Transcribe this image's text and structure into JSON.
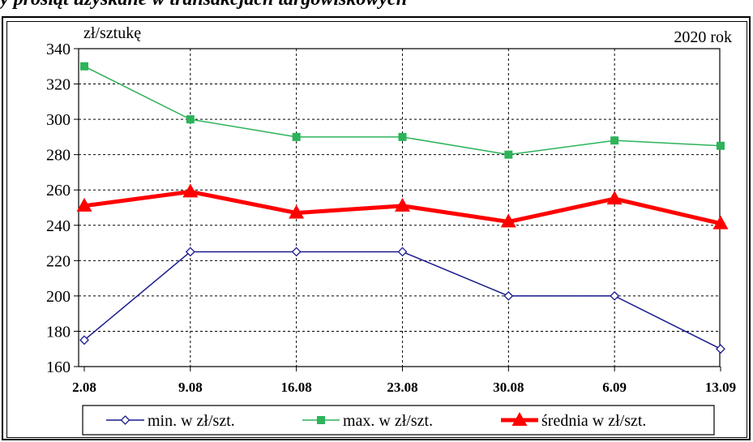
{
  "caption": "y prosiąt uzyskane w transakcjach targowiskowych",
  "chart_data": {
    "type": "line",
    "ylabel": "zł/sztukę",
    "annotation": "2020 rok",
    "categories": [
      "2.08",
      "9.08",
      "16.08",
      "23.08",
      "30.08",
      "6.09",
      "13.09"
    ],
    "ylim": [
      160,
      340
    ],
    "yticks": [
      160,
      180,
      200,
      220,
      240,
      260,
      280,
      300,
      320,
      340
    ],
    "grid": true,
    "legend_position": "bottom",
    "series": [
      {
        "name": "min. w zł/szt.",
        "values": [
          175,
          225,
          225,
          225,
          200,
          200,
          170
        ],
        "color": "#1a1a8c",
        "marker": "diamond"
      },
      {
        "name": "max. w zł/szt.",
        "values": [
          330,
          300,
          290,
          290,
          280,
          288,
          285
        ],
        "color": "#2db35a",
        "marker": "square"
      },
      {
        "name": "średnia w zł/szt.",
        "values": [
          251,
          259,
          247,
          251,
          242,
          255,
          241
        ],
        "color": "#ff0000",
        "marker": "triangle"
      }
    ]
  }
}
